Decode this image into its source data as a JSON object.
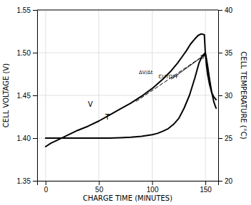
{
  "chart_data": {
    "type": "line",
    "x_label": "CHARGE TIME (MINUTES)",
    "y_label": "CELL VOLTAGE (V)",
    "y2_label": "CELL TEMPERATURE (°C)",
    "xlim": [
      -8,
      162
    ],
    "ylim": [
      1.35,
      1.55
    ],
    "y2lim": [
      20,
      40
    ],
    "xticks": [
      0,
      50,
      100,
      150
    ],
    "yticks": [
      1.35,
      {
        "value": 1.4,
        "label": "1.40"
      },
      1.45,
      {
        "value": 1.5,
        "label": "1.50"
      },
      1.55
    ],
    "y2ticks": [
      20,
      25,
      30,
      35,
      40
    ],
    "grid": true,
    "series": [
      {
        "color": "#000000",
        "line_style": "solid",
        "x": [
          0,
          5,
          10,
          20,
          30,
          40,
          50,
          60,
          70,
          80,
          90,
          100,
          110,
          118,
          124,
          128,
          132,
          136,
          140,
          143,
          146,
          149,
          150,
          151,
          152,
          154,
          156,
          158,
          160
        ],
        "values": [
          1.39,
          1.394,
          1.397,
          1.403,
          1.409,
          1.414,
          1.42,
          1.427,
          1.434,
          1.441,
          1.449,
          1.458,
          1.469,
          1.479,
          1.488,
          1.495,
          1.502,
          1.51,
          1.516,
          1.52,
          1.522,
          1.521,
          1.498,
          1.485,
          1.475,
          1.462,
          1.453,
          1.448,
          1.445
        ]
      },
      {
        "color": "#000000",
        "line_style": "solid",
        "axis": "y2",
        "x": [
          0,
          20,
          40,
          60,
          70,
          80,
          90,
          100,
          105,
          110,
          115,
          120,
          125,
          130,
          135,
          140,
          144,
          147,
          150,
          152,
          154,
          156,
          158,
          160
        ],
        "values": [
          25.0,
          25.0,
          25.0,
          25.0,
          25.05,
          25.1,
          25.2,
          25.4,
          25.55,
          25.8,
          26.1,
          26.6,
          27.3,
          28.5,
          30.0,
          32.0,
          33.8,
          34.6,
          35.0,
          33.5,
          31.8,
          30.3,
          29.2,
          28.5
        ]
      },
      {
        "color": "#000000",
        "line_style": "dashed",
        "x": [
          85,
          150
        ],
        "values": [
          1.443,
          1.498
        ]
      }
    ],
    "arrows": [
      {
        "x": [
          118,
          149
        ],
        "y": [
          1.469,
          1.497
        ]
      }
    ],
    "annotations": [
      {
        "text": "ΔV/Δt",
        "x": 94,
        "y": 1.477
      },
      {
        "text": "CUTOFF",
        "x": 106,
        "y": 1.472
      },
      {
        "text": "V",
        "x": 42,
        "y": 1.44
      },
      {
        "text": "T",
        "x": 58,
        "y": 1.425
      }
    ]
  }
}
